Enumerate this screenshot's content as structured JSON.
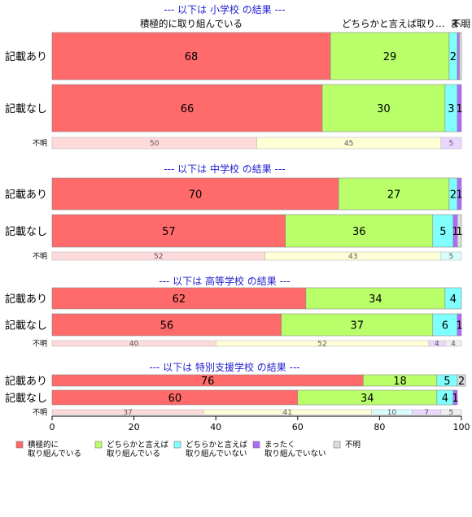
{
  "colors": {
    "positive": "#ff6a6a",
    "somewhat_positive": "#b8ff6a",
    "somewhat_negative": "#80ffff",
    "negative": "#b06aff",
    "unknown": "#dcdcdc",
    "unknown_row": [
      "#ffdada",
      "#ffffd6",
      "#d8ffff",
      "#ebd6ff",
      "#f0f0f0"
    ],
    "section_title": "#1f1fcf"
  },
  "top_labels": [
    "積極的に取り組んでいる",
    "どちらかと言えば取り…",
    "ま…",
    "不明"
  ],
  "chart_data": {
    "type": "bar",
    "orientation": "horizontal-stacked-percent",
    "xlim": [
      0,
      100
    ],
    "xticks": [
      0,
      20,
      40,
      60,
      80,
      100
    ],
    "categories_order": [
      "積極的に\n取り組んでいる",
      "どちらかと言えば\n取り組んでいる",
      "どちらかと言えば\n取り組んでいない",
      "まったく\n取り組んでいない",
      "不明"
    ],
    "legend": {
      "placement": "bottom",
      "items": [
        {
          "key": "positive",
          "lines": [
            "積極的に",
            "取り組んでいる"
          ]
        },
        {
          "key": "somewhat_positive",
          "lines": [
            "どちらかと言えば",
            "取り組んでいる"
          ]
        },
        {
          "key": "somewhat_negative",
          "lines": [
            "どちらかと言えば",
            "取り組んでいない"
          ]
        },
        {
          "key": "negative",
          "lines": [
            "まったく",
            "取り組んでいない"
          ]
        },
        {
          "key": "unknown",
          "lines": [
            "不明"
          ]
        }
      ]
    },
    "sections": [
      {
        "title": "--- 以下は 小学校 の結果 ---",
        "rows": [
          {
            "label": "記載あり",
            "values": [
              68,
              29,
              2,
              0.5,
              0.5
            ],
            "labels": [
              "68",
              "29",
              "2",
              "",
              ""
            ]
          },
          {
            "label": "記載なし",
            "values": [
              66,
              30,
              3,
              1,
              0
            ],
            "labels": [
              "66",
              "30",
              "3",
              "1",
              ""
            ]
          },
          {
            "label": "不明",
            "values": [
              50,
              45,
              0,
              5,
              0
            ],
            "labels": [
              "50",
              "45",
              "",
              "5",
              ""
            ],
            "small": true
          }
        ]
      },
      {
        "title": "--- 以下は 中学校 の結果 ---",
        "rows": [
          {
            "label": "記載あり",
            "values": [
              70,
              27,
              2,
              1,
              0
            ],
            "labels": [
              "70",
              "27",
              "2",
              "1",
              ""
            ]
          },
          {
            "label": "記載なし",
            "values": [
              57,
              36,
              5,
              1,
              1
            ],
            "labels": [
              "57",
              "36",
              "5",
              "1",
              "1"
            ]
          },
          {
            "label": "不明",
            "values": [
              52,
              43,
              5,
              0,
              0
            ],
            "labels": [
              "52",
              "43",
              "5",
              "",
              ""
            ],
            "small": true
          }
        ]
      },
      {
        "title": "--- 以下は 高等学校 の結果 ---",
        "rows": [
          {
            "label": "記載あり",
            "values": [
              62,
              34,
              4,
              0,
              0
            ],
            "labels": [
              "62",
              "34",
              "4",
              "",
              ""
            ]
          },
          {
            "label": "記載なし",
            "values": [
              56,
              37,
              6,
              1,
              0
            ],
            "labels": [
              "56",
              "37",
              "6",
              "1",
              ""
            ]
          },
          {
            "label": "不明",
            "values": [
              40,
              52,
              0,
              4,
              4
            ],
            "labels": [
              "40",
              "52",
              "",
              "4",
              "4"
            ],
            "small": true
          }
        ]
      },
      {
        "title": "--- 以下は 特別支援学校 の結果 ---",
        "rows": [
          {
            "label": "記載あり",
            "values": [
              76,
              18,
              5,
              0,
              2
            ],
            "labels": [
              "76",
              "18",
              "5",
              "",
              "2"
            ]
          },
          {
            "label": "記載なし",
            "values": [
              60,
              34,
              4,
              1,
              0
            ],
            "labels": [
              "60",
              "34",
              "4",
              "1",
              ""
            ]
          },
          {
            "label": "不明",
            "values": [
              37,
              41,
              10,
              7,
              5
            ],
            "labels": [
              "37",
              "41",
              "10",
              "7",
              "5"
            ],
            "small": true
          }
        ]
      }
    ]
  }
}
